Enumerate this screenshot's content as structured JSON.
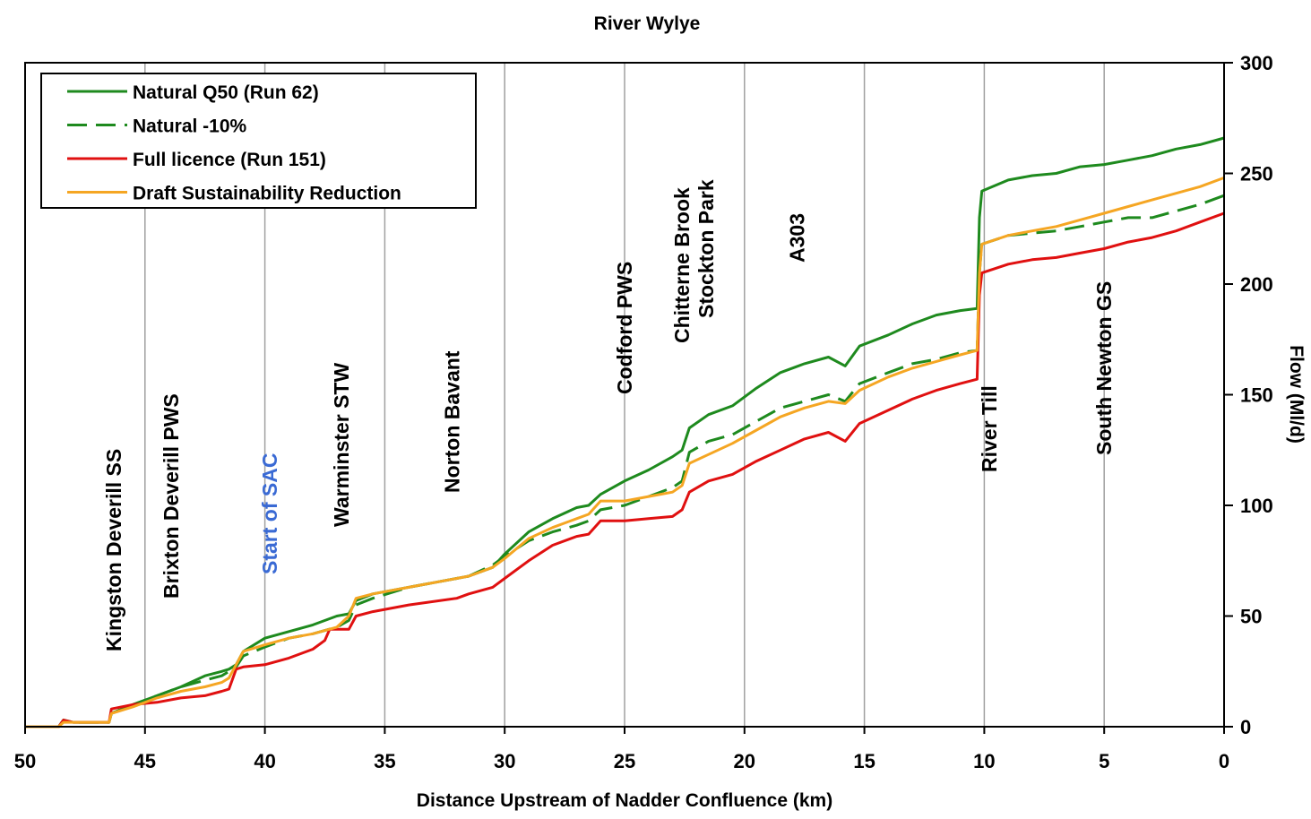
{
  "chart_data": {
    "type": "line",
    "title": "River Wylye",
    "xlabel": "Distance Upstream of Nadder Confluence (km)",
    "ylabel": "Flow (Ml/d)",
    "xlim": [
      50,
      0
    ],
    "ylim": [
      0,
      300
    ],
    "x_ticks": [
      "50",
      "45",
      "40",
      "35",
      "30",
      "25",
      "20",
      "15",
      "10",
      "5",
      "0"
    ],
    "y_ticks": [
      "0",
      "50",
      "100",
      "150",
      "200",
      "250",
      "300"
    ],
    "grid": "vertical",
    "legend_position": "top-left",
    "series": [
      {
        "name": "Natural Q50 (Run 62)",
        "color": "#1e8a1e",
        "dash": "solid",
        "points": [
          [
            50,
            0
          ],
          [
            48.6,
            0
          ],
          [
            48.4,
            3
          ],
          [
            48,
            2
          ],
          [
            46.5,
            2
          ],
          [
            46.4,
            6
          ],
          [
            45.5,
            10
          ],
          [
            44.5,
            14
          ],
          [
            43.5,
            18
          ],
          [
            42.5,
            23
          ],
          [
            41.8,
            25
          ],
          [
            41.5,
            26
          ],
          [
            41.2,
            28
          ],
          [
            40.9,
            34
          ],
          [
            40,
            40
          ],
          [
            39,
            43
          ],
          [
            38,
            46
          ],
          [
            37,
            50
          ],
          [
            36.5,
            51
          ],
          [
            36.2,
            57
          ],
          [
            35.5,
            60
          ],
          [
            34,
            63
          ],
          [
            32,
            67
          ],
          [
            31.5,
            68
          ],
          [
            30.5,
            72
          ],
          [
            30,
            78
          ],
          [
            29,
            88
          ],
          [
            28,
            94
          ],
          [
            27,
            99
          ],
          [
            26.5,
            100
          ],
          [
            26,
            105
          ],
          [
            25,
            111
          ],
          [
            24,
            116
          ],
          [
            23,
            122
          ],
          [
            22.6,
            125
          ],
          [
            22.3,
            135
          ],
          [
            21.5,
            141
          ],
          [
            20.5,
            145
          ],
          [
            19.5,
            153
          ],
          [
            18.5,
            160
          ],
          [
            17.5,
            164
          ],
          [
            16.5,
            167
          ],
          [
            15.8,
            163
          ],
          [
            15.2,
            172
          ],
          [
            14,
            177
          ],
          [
            13,
            182
          ],
          [
            12,
            186
          ],
          [
            11,
            188
          ],
          [
            10.3,
            189
          ],
          [
            10.2,
            230
          ],
          [
            10.1,
            242
          ],
          [
            9,
            247
          ],
          [
            8,
            249
          ],
          [
            7,
            250
          ],
          [
            6,
            253
          ],
          [
            5,
            254
          ],
          [
            4,
            256
          ],
          [
            3,
            258
          ],
          [
            2,
            261
          ],
          [
            1,
            263
          ],
          [
            0,
            266
          ]
        ]
      },
      {
        "name": "Natural -10%",
        "color": "#1e8a1e",
        "dash": "dashed",
        "points": [
          [
            50,
            0
          ],
          [
            48.6,
            0
          ],
          [
            48.4,
            3
          ],
          [
            48,
            2
          ],
          [
            46.5,
            2
          ],
          [
            46.4,
            6
          ],
          [
            45.5,
            10
          ],
          [
            44.5,
            14
          ],
          [
            43.5,
            18
          ],
          [
            42.5,
            21
          ],
          [
            41.8,
            23
          ],
          [
            41.5,
            25
          ],
          [
            41.2,
            27
          ],
          [
            40.9,
            32
          ],
          [
            40,
            36
          ],
          [
            39,
            40
          ],
          [
            38,
            42
          ],
          [
            37,
            45
          ],
          [
            36.5,
            48
          ],
          [
            36.2,
            55
          ],
          [
            35.5,
            58
          ],
          [
            34,
            63
          ],
          [
            32,
            67
          ],
          [
            31.5,
            68
          ],
          [
            30.5,
            73
          ],
          [
            30,
            77
          ],
          [
            29,
            84
          ],
          [
            28,
            88
          ],
          [
            27,
            91
          ],
          [
            26.5,
            93
          ],
          [
            26,
            98
          ],
          [
            25,
            100
          ],
          [
            24,
            104
          ],
          [
            23,
            108
          ],
          [
            22.6,
            111
          ],
          [
            22.3,
            124
          ],
          [
            21.5,
            129
          ],
          [
            20.5,
            132
          ],
          [
            19.5,
            138
          ],
          [
            18.5,
            144
          ],
          [
            17.5,
            147
          ],
          [
            16.5,
            150
          ],
          [
            15.8,
            147
          ],
          [
            15.2,
            155
          ],
          [
            14,
            160
          ],
          [
            13,
            164
          ],
          [
            12,
            166
          ],
          [
            11,
            169
          ],
          [
            10.3,
            170
          ],
          [
            10.2,
            205
          ],
          [
            10.1,
            218
          ],
          [
            9,
            222
          ],
          [
            8,
            223
          ],
          [
            7,
            224
          ],
          [
            6,
            226
          ],
          [
            5,
            228
          ],
          [
            4,
            230
          ],
          [
            3,
            230
          ],
          [
            2,
            233
          ],
          [
            1,
            236
          ],
          [
            0,
            240
          ]
        ]
      },
      {
        "name": "Full licence (Run 151)",
        "color": "#e01010",
        "dash": "solid",
        "points": [
          [
            50,
            0
          ],
          [
            48.6,
            0
          ],
          [
            48.4,
            3
          ],
          [
            48,
            2
          ],
          [
            46.5,
            2
          ],
          [
            46.4,
            8
          ],
          [
            45.5,
            10
          ],
          [
            44.5,
            11
          ],
          [
            43.5,
            13
          ],
          [
            42.5,
            14
          ],
          [
            41.8,
            16
          ],
          [
            41.5,
            17
          ],
          [
            41.2,
            26
          ],
          [
            40.9,
            27
          ],
          [
            40,
            28
          ],
          [
            39,
            31
          ],
          [
            38,
            35
          ],
          [
            37.5,
            39
          ],
          [
            37.3,
            44
          ],
          [
            36.5,
            44
          ],
          [
            36.2,
            50
          ],
          [
            35.5,
            52
          ],
          [
            34,
            55
          ],
          [
            32,
            58
          ],
          [
            31.5,
            60
          ],
          [
            30.5,
            63
          ],
          [
            30,
            67
          ],
          [
            29,
            75
          ],
          [
            28,
            82
          ],
          [
            27,
            86
          ],
          [
            26.5,
            87
          ],
          [
            26,
            93
          ],
          [
            25,
            93
          ],
          [
            24,
            94
          ],
          [
            23,
            95
          ],
          [
            22.6,
            98
          ],
          [
            22.3,
            106
          ],
          [
            21.5,
            111
          ],
          [
            20.5,
            114
          ],
          [
            19.5,
            120
          ],
          [
            18.5,
            125
          ],
          [
            17.5,
            130
          ],
          [
            16.5,
            133
          ],
          [
            15.8,
            129
          ],
          [
            15.2,
            137
          ],
          [
            14,
            143
          ],
          [
            13,
            148
          ],
          [
            12,
            152
          ],
          [
            11,
            155
          ],
          [
            10.3,
            157
          ],
          [
            10.2,
            195
          ],
          [
            10.1,
            205
          ],
          [
            9,
            209
          ],
          [
            8,
            211
          ],
          [
            7,
            212
          ],
          [
            6,
            214
          ],
          [
            5,
            216
          ],
          [
            4,
            219
          ],
          [
            3,
            221
          ],
          [
            2,
            224
          ],
          [
            1,
            228
          ],
          [
            0,
            232
          ]
        ]
      },
      {
        "name": "Draft Sustainability Reduction",
        "color": "#f5a623",
        "dash": "solid",
        "points": [
          [
            50,
            0
          ],
          [
            48.6,
            0
          ],
          [
            48.4,
            2
          ],
          [
            48,
            2
          ],
          [
            46.5,
            2
          ],
          [
            46.4,
            6
          ],
          [
            45.5,
            9
          ],
          [
            44.5,
            13
          ],
          [
            43.5,
            16
          ],
          [
            42.5,
            18
          ],
          [
            41.8,
            20
          ],
          [
            41.5,
            22
          ],
          [
            41.2,
            28
          ],
          [
            40.9,
            34
          ],
          [
            40,
            37
          ],
          [
            39,
            40
          ],
          [
            38,
            42
          ],
          [
            37,
            45
          ],
          [
            36.5,
            50
          ],
          [
            36.2,
            58
          ],
          [
            35.5,
            60
          ],
          [
            34,
            63
          ],
          [
            32,
            67
          ],
          [
            31.5,
            68
          ],
          [
            30.5,
            72
          ],
          [
            30,
            76
          ],
          [
            29,
            85
          ],
          [
            28,
            90
          ],
          [
            27,
            94
          ],
          [
            26.5,
            96
          ],
          [
            26,
            102
          ],
          [
            25,
            102
          ],
          [
            24,
            104
          ],
          [
            23,
            106
          ],
          [
            22.6,
            109
          ],
          [
            22.3,
            119
          ],
          [
            21.5,
            123
          ],
          [
            20.5,
            128
          ],
          [
            19.5,
            134
          ],
          [
            18.5,
            140
          ],
          [
            17.5,
            144
          ],
          [
            16.5,
            147
          ],
          [
            15.8,
            146
          ],
          [
            15.2,
            152
          ],
          [
            14,
            158
          ],
          [
            13,
            162
          ],
          [
            12,
            165
          ],
          [
            11,
            168
          ],
          [
            10.3,
            170
          ],
          [
            10.2,
            205
          ],
          [
            10.1,
            218
          ],
          [
            9,
            222
          ],
          [
            8,
            224
          ],
          [
            7,
            226
          ],
          [
            6,
            229
          ],
          [
            5,
            232
          ],
          [
            4,
            235
          ],
          [
            3,
            238
          ],
          [
            2,
            241
          ],
          [
            1,
            244
          ],
          [
            0,
            248
          ]
        ]
      }
    ],
    "annotations": [
      {
        "text": "Kingston Deverill SS",
        "x": 46.3,
        "color": "#000000"
      },
      {
        "text": "Brixton Deverill PWS",
        "x": 43.9,
        "color": "#000000"
      },
      {
        "text": "Start of SAC",
        "x": 39.8,
        "color": "#3a6ad4"
      },
      {
        "text": "Warminster STW",
        "x": 36.8,
        "color": "#000000"
      },
      {
        "text": "Norton Bavant",
        "x": 32.2,
        "color": "#000000"
      },
      {
        "text": "Codford PWS",
        "x": 25.0,
        "color": "#000000"
      },
      {
        "text": "Chitterne Brook",
        "x": 22.6,
        "color": "#000000"
      },
      {
        "text": "Stockton Park",
        "x": 21.6,
        "color": "#000000"
      },
      {
        "text": "A303",
        "x": 17.8,
        "color": "#000000"
      },
      {
        "text": "River Till",
        "x": 9.8,
        "color": "#000000"
      },
      {
        "text": "South Newton GS",
        "x": 5.0,
        "color": "#000000"
      }
    ]
  }
}
